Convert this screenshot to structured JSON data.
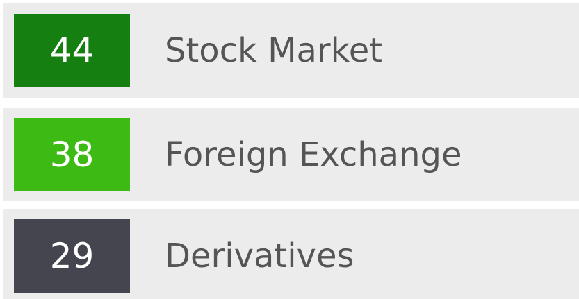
{
  "items": [
    {
      "value": 44,
      "label": "Stock Market",
      "color": "#157f11"
    },
    {
      "value": 38,
      "label": "Foreign Exchange",
      "color": "#3dbb14"
    },
    {
      "value": 29,
      "label": "Derivatives",
      "color": "#454550"
    }
  ]
}
